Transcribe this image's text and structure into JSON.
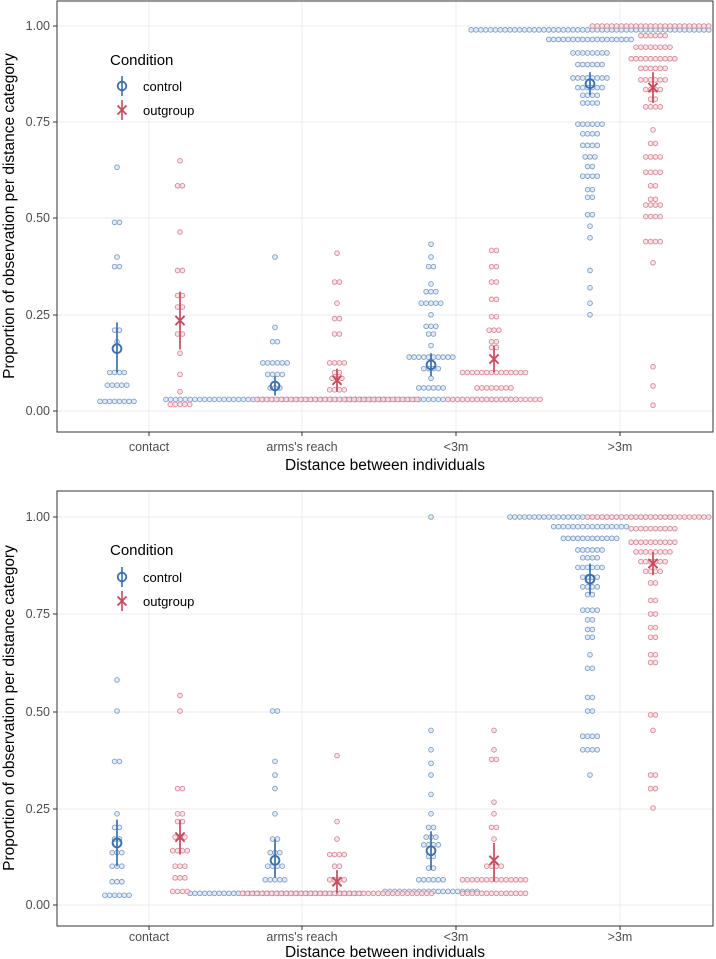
{
  "colors": {
    "control": "#3a6fb0",
    "outgroup": "#c84a5e",
    "control_dot": "#7e9fc8",
    "outgroup_dot": "#d98b99"
  },
  "chart_data": [
    {
      "type": "dotplot",
      "xlabel": "Distance between individuals",
      "ylabel": "Proportion of observation per distance category",
      "ylim": [
        -0.04,
        1.04
      ],
      "yticks": [
        "0.00",
        "0.25",
        "0.50",
        "0.75",
        "1.00"
      ],
      "categories": [
        "contact",
        "arms's reach",
        "<3m",
        ">3m"
      ],
      "legend": {
        "title": "Condition",
        "position": "top-left",
        "items": [
          "control",
          "outgroup"
        ]
      },
      "series": [
        {
          "name": "control",
          "symbol": "circle",
          "means": [
            0.162,
            0.065,
            0.12,
            0.85
          ],
          "ci": [
            [
              0.1,
              0.23
            ],
            [
              0.04,
              0.09
            ],
            [
              0.09,
              0.15
            ],
            [
              0.82,
              0.88
            ]
          ],
          "dots": [
            [
              [
                0.633,
                1
              ],
              [
                0.49,
                2
              ],
              [
                0.4,
                1
              ],
              [
                0.375,
                2
              ],
              [
                0.21,
                2
              ],
              [
                0.18,
                1
              ],
              [
                0.1,
                4
              ],
              [
                0.067,
                5
              ],
              [
                0.025,
                8
              ]
            ],
            [
              [
                0.4,
                1
              ],
              [
                0.217,
                1
              ],
              [
                0.18,
                2
              ],
              [
                0.125,
                6
              ],
              [
                0.095,
                4
              ],
              [
                0.06,
                3
              ],
              [
                0.03,
                46
              ]
            ],
            [
              [
                0.433,
                1
              ],
              [
                0.4,
                1
              ],
              [
                0.375,
                2
              ],
              [
                0.33,
                1
              ],
              [
                0.31,
                3
              ],
              [
                0.28,
                5
              ],
              [
                0.25,
                1
              ],
              [
                0.22,
                3
              ],
              [
                0.2,
                2
              ],
              [
                0.17,
                1
              ],
              [
                0.14,
                10
              ],
              [
                0.11,
                4
              ],
              [
                0.085,
                1
              ],
              [
                0.06,
                6
              ],
              [
                0.03,
                36
              ]
            ],
            [
              [
                0.99,
                50
              ],
              [
                0.965,
                18
              ],
              [
                0.93,
                8
              ],
              [
                0.9,
                6
              ],
              [
                0.865,
                8
              ],
              [
                0.84,
                6
              ],
              [
                0.82,
                4
              ],
              [
                0.8,
                4
              ],
              [
                0.745,
                6
              ],
              [
                0.72,
                4
              ],
              [
                0.69,
                4
              ],
              [
                0.66,
                3
              ],
              [
                0.635,
                2
              ],
              [
                0.61,
                4
              ],
              [
                0.575,
                2
              ],
              [
                0.555,
                2
              ],
              [
                0.51,
                2
              ],
              [
                0.48,
                1
              ],
              [
                0.45,
                1
              ],
              [
                0.365,
                1
              ],
              [
                0.32,
                1
              ],
              [
                0.28,
                1
              ],
              [
                0.25,
                1
              ]
            ]
          ]
        },
        {
          "name": "outgroup",
          "symbol": "x",
          "means": [
            0.235,
            0.08,
            0.135,
            0.84
          ],
          "ci": [
            [
              0.16,
              0.31
            ],
            [
              0.05,
              0.11
            ],
            [
              0.1,
              0.17
            ],
            [
              0.8,
              0.88
            ]
          ],
          "dots": [
            [
              [
                0.65,
                1
              ],
              [
                0.585,
                2
              ],
              [
                0.465,
                1
              ],
              [
                0.365,
                2
              ],
              [
                0.3,
                2
              ],
              [
                0.27,
                2
              ],
              [
                0.2,
                2
              ],
              [
                0.15,
                1
              ],
              [
                0.095,
                1
              ],
              [
                0.05,
                1
              ],
              [
                0.017,
                5
              ]
            ],
            [
              [
                0.41,
                1
              ],
              [
                0.335,
                2
              ],
              [
                0.28,
                1
              ],
              [
                0.24,
                2
              ],
              [
                0.2,
                2
              ],
              [
                0.125,
                4
              ],
              [
                0.1,
                2
              ],
              [
                0.085,
                3
              ],
              [
                0.055,
                4
              ],
              [
                0.03,
                34
              ]
            ],
            [
              [
                0.417,
                2
              ],
              [
                0.375,
                2
              ],
              [
                0.335,
                2
              ],
              [
                0.29,
                2
              ],
              [
                0.245,
                2
              ],
              [
                0.21,
                3
              ],
              [
                0.18,
                2
              ],
              [
                0.165,
                2
              ],
              [
                0.1,
                14
              ],
              [
                0.06,
                8
              ],
              [
                0.03,
                20
              ]
            ],
            [
              [
                1.0,
                26
              ],
              [
                0.975,
                6
              ],
              [
                0.945,
                8
              ],
              [
                0.915,
                10
              ],
              [
                0.89,
                6
              ],
              [
                0.86,
                6
              ],
              [
                0.835,
                4
              ],
              [
                0.81,
                2
              ],
              [
                0.79,
                4
              ],
              [
                0.73,
                1
              ],
              [
                0.695,
                2
              ],
              [
                0.66,
                4
              ],
              [
                0.62,
                4
              ],
              [
                0.585,
                2
              ],
              [
                0.55,
                2
              ],
              [
                0.535,
                4
              ],
              [
                0.505,
                4
              ],
              [
                0.44,
                4
              ],
              [
                0.385,
                1
              ],
              [
                0.115,
                1
              ],
              [
                0.065,
                1
              ],
              [
                0.015,
                1
              ]
            ]
          ]
        }
      ]
    },
    {
      "type": "dotplot",
      "xlabel": "Distance between individuals",
      "ylabel": "Proportion of observation per distance category",
      "ylim": [
        -0.04,
        1.04
      ],
      "yticks": [
        "0.00",
        "0.25",
        "0.50",
        "0.75",
        "1.00"
      ],
      "categories": [
        "contact",
        "arms's reach",
        "<3m",
        ">3m"
      ],
      "legend": {
        "title": "Condition",
        "position": "top-left",
        "items": [
          "control",
          "outgroup"
        ]
      },
      "series": [
        {
          "name": "control",
          "symbol": "circle",
          "means": [
            0.16,
            0.115,
            0.14,
            0.84
          ],
          "ci": [
            [
              0.1,
              0.22
            ],
            [
              0.07,
              0.17
            ],
            [
              0.09,
              0.19
            ],
            [
              0.8,
              0.88
            ]
          ],
          "dots": [
            [
              [
                0.58,
                1
              ],
              [
                0.5,
                1
              ],
              [
                0.37,
                2
              ],
              [
                0.235,
                1
              ],
              [
                0.2,
                2
              ],
              [
                0.17,
                2
              ],
              [
                0.135,
                3
              ],
              [
                0.1,
                3
              ],
              [
                0.06,
                3
              ],
              [
                0.025,
                6
              ]
            ],
            [
              [
                0.5,
                2
              ],
              [
                0.37,
                1
              ],
              [
                0.335,
                1
              ],
              [
                0.3,
                1
              ],
              [
                0.235,
                1
              ],
              [
                0.17,
                2
              ],
              [
                0.135,
                3
              ],
              [
                0.1,
                4
              ],
              [
                0.065,
                5
              ],
              [
                0.03,
                36
              ]
            ],
            [
              [
                1.0,
                1
              ],
              [
                0.45,
                1
              ],
              [
                0.4,
                1
              ],
              [
                0.365,
                1
              ],
              [
                0.335,
                1
              ],
              [
                0.285,
                1
              ],
              [
                0.235,
                1
              ],
              [
                0.2,
                2
              ],
              [
                0.175,
                3
              ],
              [
                0.155,
                4
              ],
              [
                0.125,
                2
              ],
              [
                0.095,
                2
              ],
              [
                0.065,
                6
              ],
              [
                0.035,
                20
              ]
            ],
            [
              [
                1.0,
                34
              ],
              [
                0.975,
                16
              ],
              [
                0.945,
                12
              ],
              [
                0.915,
                6
              ],
              [
                0.895,
                4
              ],
              [
                0.87,
                6
              ],
              [
                0.845,
                4
              ],
              [
                0.82,
                4
              ],
              [
                0.8,
                2
              ],
              [
                0.76,
                4
              ],
              [
                0.735,
                2
              ],
              [
                0.71,
                2
              ],
              [
                0.69,
                2
              ],
              [
                0.645,
                1
              ],
              [
                0.61,
                2
              ],
              [
                0.535,
                2
              ],
              [
                0.5,
                2
              ],
              [
                0.435,
                4
              ],
              [
                0.4,
                4
              ],
              [
                0.335,
                1
              ]
            ]
          ]
        },
        {
          "name": "outgroup",
          "symbol": "x",
          "means": [
            0.175,
            0.06,
            0.115,
            0.88
          ],
          "ci": [
            [
              0.13,
              0.22
            ],
            [
              0.03,
              0.09
            ],
            [
              0.06,
              0.16
            ],
            [
              0.85,
              0.91
            ]
          ],
          "dots": [
            [
              [
                0.54,
                1
              ],
              [
                0.5,
                1
              ],
              [
                0.3,
                2
              ],
              [
                0.235,
                2
              ],
              [
                0.215,
                2
              ],
              [
                0.175,
                3
              ],
              [
                0.14,
                4
              ],
              [
                0.1,
                3
              ],
              [
                0.07,
                3
              ],
              [
                0.035,
                4
              ]
            ],
            [
              [
                0.385,
                1
              ],
              [
                0.215,
                1
              ],
              [
                0.17,
                1
              ],
              [
                0.13,
                4
              ],
              [
                0.1,
                2
              ],
              [
                0.065,
                4
              ],
              [
                0.03,
                40
              ]
            ],
            [
              [
                0.45,
                1
              ],
              [
                0.4,
                1
              ],
              [
                0.375,
                2
              ],
              [
                0.265,
                1
              ],
              [
                0.235,
                1
              ],
              [
                0.2,
                2
              ],
              [
                0.17,
                1
              ],
              [
                0.1,
                4
              ],
              [
                0.065,
                14
              ],
              [
                0.03,
                14
              ]
            ],
            [
              [
                1.0,
                28
              ],
              [
                0.97,
                10
              ],
              [
                0.935,
                10
              ],
              [
                0.91,
                8
              ],
              [
                0.885,
                6
              ],
              [
                0.86,
                4
              ],
              [
                0.83,
                2
              ],
              [
                0.785,
                2
              ],
              [
                0.75,
                2
              ],
              [
                0.715,
                2
              ],
              [
                0.69,
                2
              ],
              [
                0.645,
                2
              ],
              [
                0.625,
                2
              ],
              [
                0.49,
                2
              ],
              [
                0.45,
                1
              ],
              [
                0.335,
                2
              ],
              [
                0.3,
                2
              ],
              [
                0.25,
                1
              ]
            ]
          ]
        }
      ]
    }
  ]
}
